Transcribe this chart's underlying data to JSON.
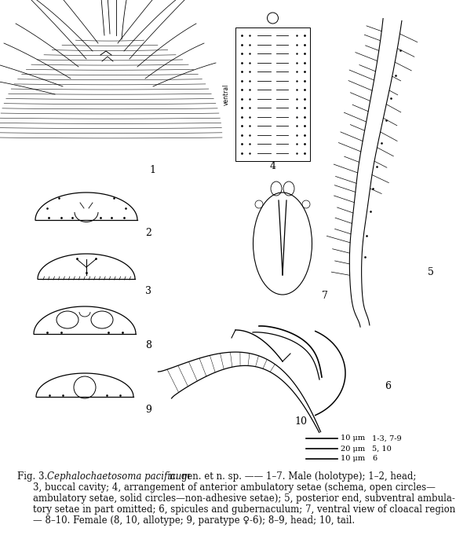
{
  "caption_fig": "Fig. 3.",
  "caption_species": "Cephalochaetosoma pacificum",
  "caption_line1_rest": " n. gen. et n. sp. —— 1–7. Male (holotype); 1–2, head;",
  "caption_line2": "3, buccal cavity; 4, arrangement of anterior ambulatory setae (schema, open circles—",
  "caption_line3": "ambulatory setae, solid circles—non-adhesive setae); 5, posterior end, subventral ambula-",
  "caption_line4": "tory setae in part omitted; 6, spicules and gubernaculum; 7, ventral view of cloacal region.",
  "caption_line5": "— 8–10. Female (8, 10, allotype; 9, paratype ♀-6); 8–9, head; 10, tail.",
  "scalebar_lines": [
    {
      "label": "10 μm",
      "figures": "1-3, 7-9"
    },
    {
      "label": "20 μm",
      "figures": "5, 10"
    },
    {
      "label": "10 μm",
      "figures": "6"
    }
  ],
  "bg_color": "#ffffff",
  "text_color": "#111111",
  "fig_width": 5.81,
  "fig_height": 7.0,
  "dpi": 100
}
